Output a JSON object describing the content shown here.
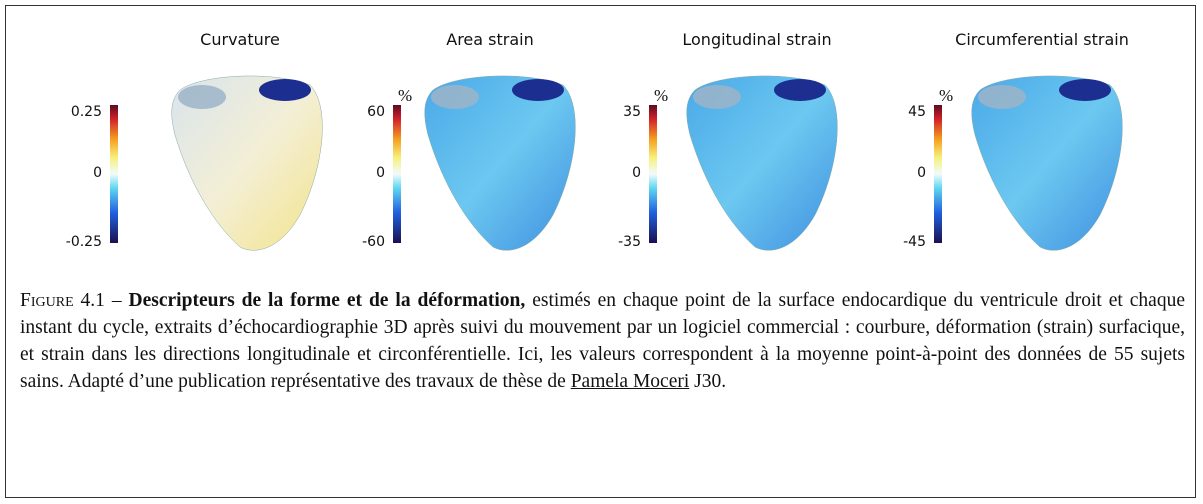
{
  "panels": [
    {
      "title": "Curvature",
      "colorbar": {
        "max": "0.25",
        "mid": "0",
        "min": "-0.25"
      }
    },
    {
      "title": "Area strain",
      "unit": "%",
      "colorbar": {
        "max": "60",
        "mid": "0",
        "min": "-60"
      }
    },
    {
      "title": "Longitudinal strain",
      "unit": "%",
      "colorbar": {
        "max": "35",
        "mid": "0",
        "min": "-35"
      }
    },
    {
      "title": "Circumferential strain",
      "unit": "%",
      "colorbar": {
        "max": "45",
        "mid": "0",
        "min": "-45"
      }
    }
  ],
  "caption": {
    "label": "Figure 4.1 –",
    "title": "Descripteurs de la forme et de la déformation,",
    "text": "estimés en chaque point de la surface endocardique du ventricule droit et chaque instant du cycle, extraits d’échocardiographie 3D après suivi du mouvement par un logiciel commercial : courbure, déformation (strain) surfacique, et strain dans les directions longitudinale et circonférentielle. Ici, les valeurs correspondent à la moyenne point-à-point des données de 55 sujets sains. Adapté d’une publication représentative des travaux de thèse de",
    "link": "Pamela Moceri",
    "ref": "J30."
  }
}
